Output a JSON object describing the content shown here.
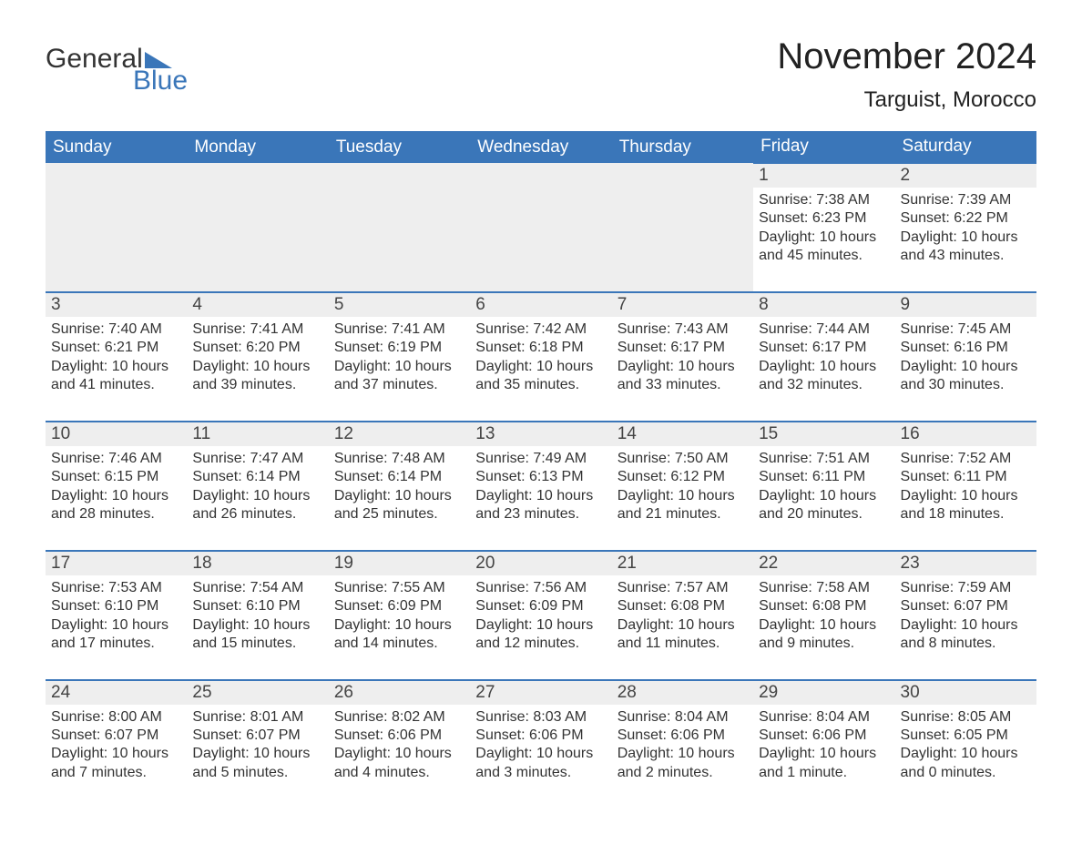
{
  "brand": {
    "part1": "General",
    "part2": "Blue",
    "triangle_color": "#3a76b9"
  },
  "title": "November 2024",
  "location": "Targuist, Morocco",
  "colors": {
    "header_bg": "#3a76b9",
    "row_stripe": "#eeeeee",
    "page_bg": "#ffffff",
    "text": "#333333"
  },
  "typography": {
    "title_fontsize": 40,
    "location_fontsize": 24,
    "header_fontsize": 19,
    "daynum_fontsize": 19,
    "detail_fontsize": 16
  },
  "calendar": {
    "type": "table",
    "columns": [
      "Sunday",
      "Monday",
      "Tuesday",
      "Wednesday",
      "Thursday",
      "Friday",
      "Saturday"
    ],
    "weeks": [
      [
        null,
        null,
        null,
        null,
        null,
        {
          "day": "1",
          "sunrise": "Sunrise: 7:38 AM",
          "sunset": "Sunset: 6:23 PM",
          "daylight": "Daylight: 10 hours and 45 minutes."
        },
        {
          "day": "2",
          "sunrise": "Sunrise: 7:39 AM",
          "sunset": "Sunset: 6:22 PM",
          "daylight": "Daylight: 10 hours and 43 minutes."
        }
      ],
      [
        {
          "day": "3",
          "sunrise": "Sunrise: 7:40 AM",
          "sunset": "Sunset: 6:21 PM",
          "daylight": "Daylight: 10 hours and 41 minutes."
        },
        {
          "day": "4",
          "sunrise": "Sunrise: 7:41 AM",
          "sunset": "Sunset: 6:20 PM",
          "daylight": "Daylight: 10 hours and 39 minutes."
        },
        {
          "day": "5",
          "sunrise": "Sunrise: 7:41 AM",
          "sunset": "Sunset: 6:19 PM",
          "daylight": "Daylight: 10 hours and 37 minutes."
        },
        {
          "day": "6",
          "sunrise": "Sunrise: 7:42 AM",
          "sunset": "Sunset: 6:18 PM",
          "daylight": "Daylight: 10 hours and 35 minutes."
        },
        {
          "day": "7",
          "sunrise": "Sunrise: 7:43 AM",
          "sunset": "Sunset: 6:17 PM",
          "daylight": "Daylight: 10 hours and 33 minutes."
        },
        {
          "day": "8",
          "sunrise": "Sunrise: 7:44 AM",
          "sunset": "Sunset: 6:17 PM",
          "daylight": "Daylight: 10 hours and 32 minutes."
        },
        {
          "day": "9",
          "sunrise": "Sunrise: 7:45 AM",
          "sunset": "Sunset: 6:16 PM",
          "daylight": "Daylight: 10 hours and 30 minutes."
        }
      ],
      [
        {
          "day": "10",
          "sunrise": "Sunrise: 7:46 AM",
          "sunset": "Sunset: 6:15 PM",
          "daylight": "Daylight: 10 hours and 28 minutes."
        },
        {
          "day": "11",
          "sunrise": "Sunrise: 7:47 AM",
          "sunset": "Sunset: 6:14 PM",
          "daylight": "Daylight: 10 hours and 26 minutes."
        },
        {
          "day": "12",
          "sunrise": "Sunrise: 7:48 AM",
          "sunset": "Sunset: 6:14 PM",
          "daylight": "Daylight: 10 hours and 25 minutes."
        },
        {
          "day": "13",
          "sunrise": "Sunrise: 7:49 AM",
          "sunset": "Sunset: 6:13 PM",
          "daylight": "Daylight: 10 hours and 23 minutes."
        },
        {
          "day": "14",
          "sunrise": "Sunrise: 7:50 AM",
          "sunset": "Sunset: 6:12 PM",
          "daylight": "Daylight: 10 hours and 21 minutes."
        },
        {
          "day": "15",
          "sunrise": "Sunrise: 7:51 AM",
          "sunset": "Sunset: 6:11 PM",
          "daylight": "Daylight: 10 hours and 20 minutes."
        },
        {
          "day": "16",
          "sunrise": "Sunrise: 7:52 AM",
          "sunset": "Sunset: 6:11 PM",
          "daylight": "Daylight: 10 hours and 18 minutes."
        }
      ],
      [
        {
          "day": "17",
          "sunrise": "Sunrise: 7:53 AM",
          "sunset": "Sunset: 6:10 PM",
          "daylight": "Daylight: 10 hours and 17 minutes."
        },
        {
          "day": "18",
          "sunrise": "Sunrise: 7:54 AM",
          "sunset": "Sunset: 6:10 PM",
          "daylight": "Daylight: 10 hours and 15 minutes."
        },
        {
          "day": "19",
          "sunrise": "Sunrise: 7:55 AM",
          "sunset": "Sunset: 6:09 PM",
          "daylight": "Daylight: 10 hours and 14 minutes."
        },
        {
          "day": "20",
          "sunrise": "Sunrise: 7:56 AM",
          "sunset": "Sunset: 6:09 PM",
          "daylight": "Daylight: 10 hours and 12 minutes."
        },
        {
          "day": "21",
          "sunrise": "Sunrise: 7:57 AM",
          "sunset": "Sunset: 6:08 PM",
          "daylight": "Daylight: 10 hours and 11 minutes."
        },
        {
          "day": "22",
          "sunrise": "Sunrise: 7:58 AM",
          "sunset": "Sunset: 6:08 PM",
          "daylight": "Daylight: 10 hours and 9 minutes."
        },
        {
          "day": "23",
          "sunrise": "Sunrise: 7:59 AM",
          "sunset": "Sunset: 6:07 PM",
          "daylight": "Daylight: 10 hours and 8 minutes."
        }
      ],
      [
        {
          "day": "24",
          "sunrise": "Sunrise: 8:00 AM",
          "sunset": "Sunset: 6:07 PM",
          "daylight": "Daylight: 10 hours and 7 minutes."
        },
        {
          "day": "25",
          "sunrise": "Sunrise: 8:01 AM",
          "sunset": "Sunset: 6:07 PM",
          "daylight": "Daylight: 10 hours and 5 minutes."
        },
        {
          "day": "26",
          "sunrise": "Sunrise: 8:02 AM",
          "sunset": "Sunset: 6:06 PM",
          "daylight": "Daylight: 10 hours and 4 minutes."
        },
        {
          "day": "27",
          "sunrise": "Sunrise: 8:03 AM",
          "sunset": "Sunset: 6:06 PM",
          "daylight": "Daylight: 10 hours and 3 minutes."
        },
        {
          "day": "28",
          "sunrise": "Sunrise: 8:04 AM",
          "sunset": "Sunset: 6:06 PM",
          "daylight": "Daylight: 10 hours and 2 minutes."
        },
        {
          "day": "29",
          "sunrise": "Sunrise: 8:04 AM",
          "sunset": "Sunset: 6:06 PM",
          "daylight": "Daylight: 10 hours and 1 minute."
        },
        {
          "day": "30",
          "sunrise": "Sunrise: 8:05 AM",
          "sunset": "Sunset: 6:05 PM",
          "daylight": "Daylight: 10 hours and 0 minutes."
        }
      ]
    ]
  }
}
